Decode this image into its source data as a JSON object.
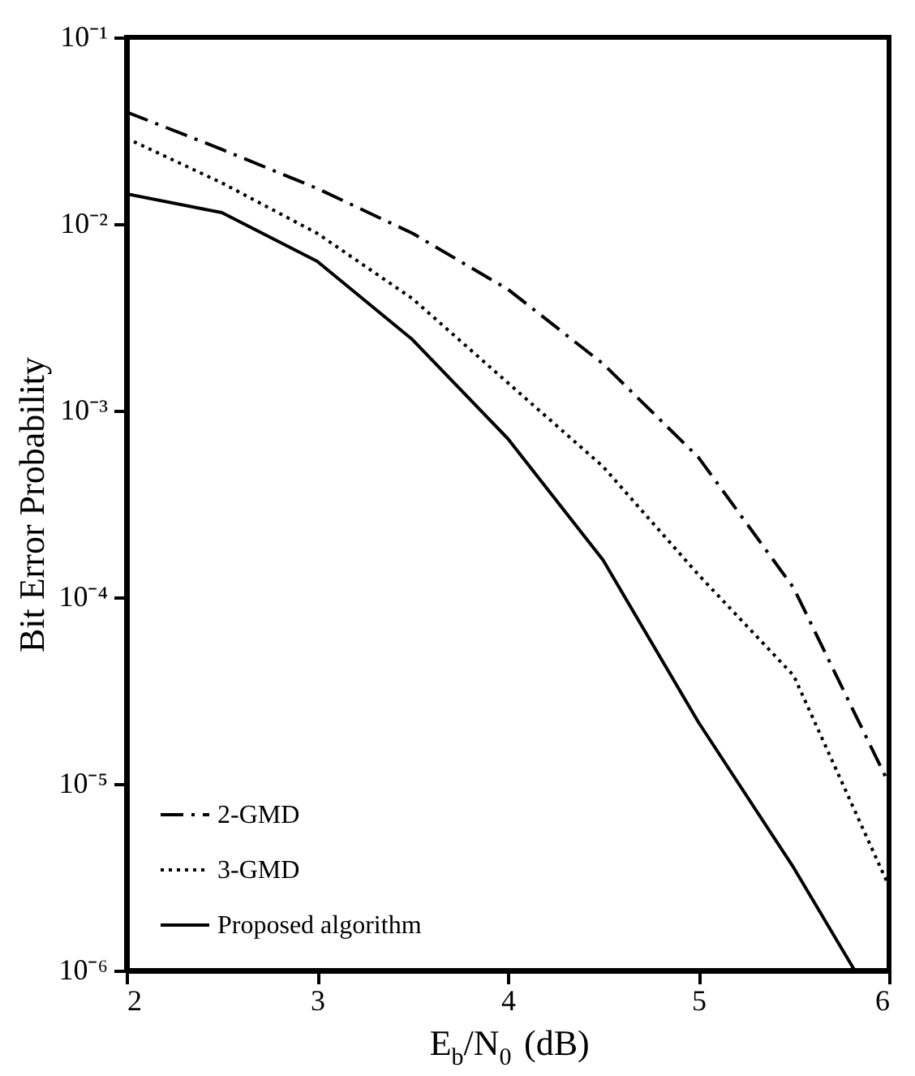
{
  "chart_data": {
    "type": "line",
    "xlabel": "E$_{b}$/N$_{0}$ (dB)",
    "ylabel": "Bit Error Probability",
    "log": "y",
    "legend": "bottom left",
    "grid": false,
    "xlim": [
      2,
      6
    ],
    "xticks": [
      2,
      3,
      4,
      5,
      6
    ],
    "ylim": [
      1e-06,
      0.1
    ],
    "yticks": [
      {
        "value": 0.1,
        "label": "10⁻¹"
      },
      {
        "value": 0.01,
        "label": "10⁻²"
      },
      {
        "value": 0.001,
        "label": "10⁻³"
      },
      {
        "value": 0.0001,
        "label": "10⁻⁴"
      },
      {
        "value": 1e-05,
        "label": "10⁻⁵"
      },
      {
        "value": 1e-06,
        "label": "10⁻⁶"
      }
    ],
    "x": [
      2,
      2.5,
      3,
      3.5,
      4,
      4.5,
      5,
      5.5,
      6
    ],
    "series": [
      {
        "name": "2-GMD",
        "color": "#000000",
        "line_style": "dashdot",
        "values": [
          0.0398,
          0.0251,
          0.0155,
          0.00891,
          0.00447,
          0.00178,
          0.000562,
          0.000112,
          1e-05
        ]
      },
      {
        "name": "3-GMD",
        "color": "#000000",
        "line_style": "dotted",
        "values": [
          0.0288,
          0.0166,
          0.00891,
          0.00398,
          0.00141,
          0.000501,
          0.000132,
          3.8e-05,
          2.82e-06
        ]
      },
      {
        "name": "Proposed algorithm",
        "color": "#000000",
        "line_style": "solid",
        "x": [
          2,
          2.5,
          3,
          3.5,
          4,
          4.5,
          5,
          5.5,
          5.82
        ],
        "values": [
          0.0145,
          0.0115,
          0.00631,
          0.0024,
          0.000708,
          0.000158,
          2.14e-05,
          3.55e-06,
          1e-06
        ]
      }
    ]
  }
}
